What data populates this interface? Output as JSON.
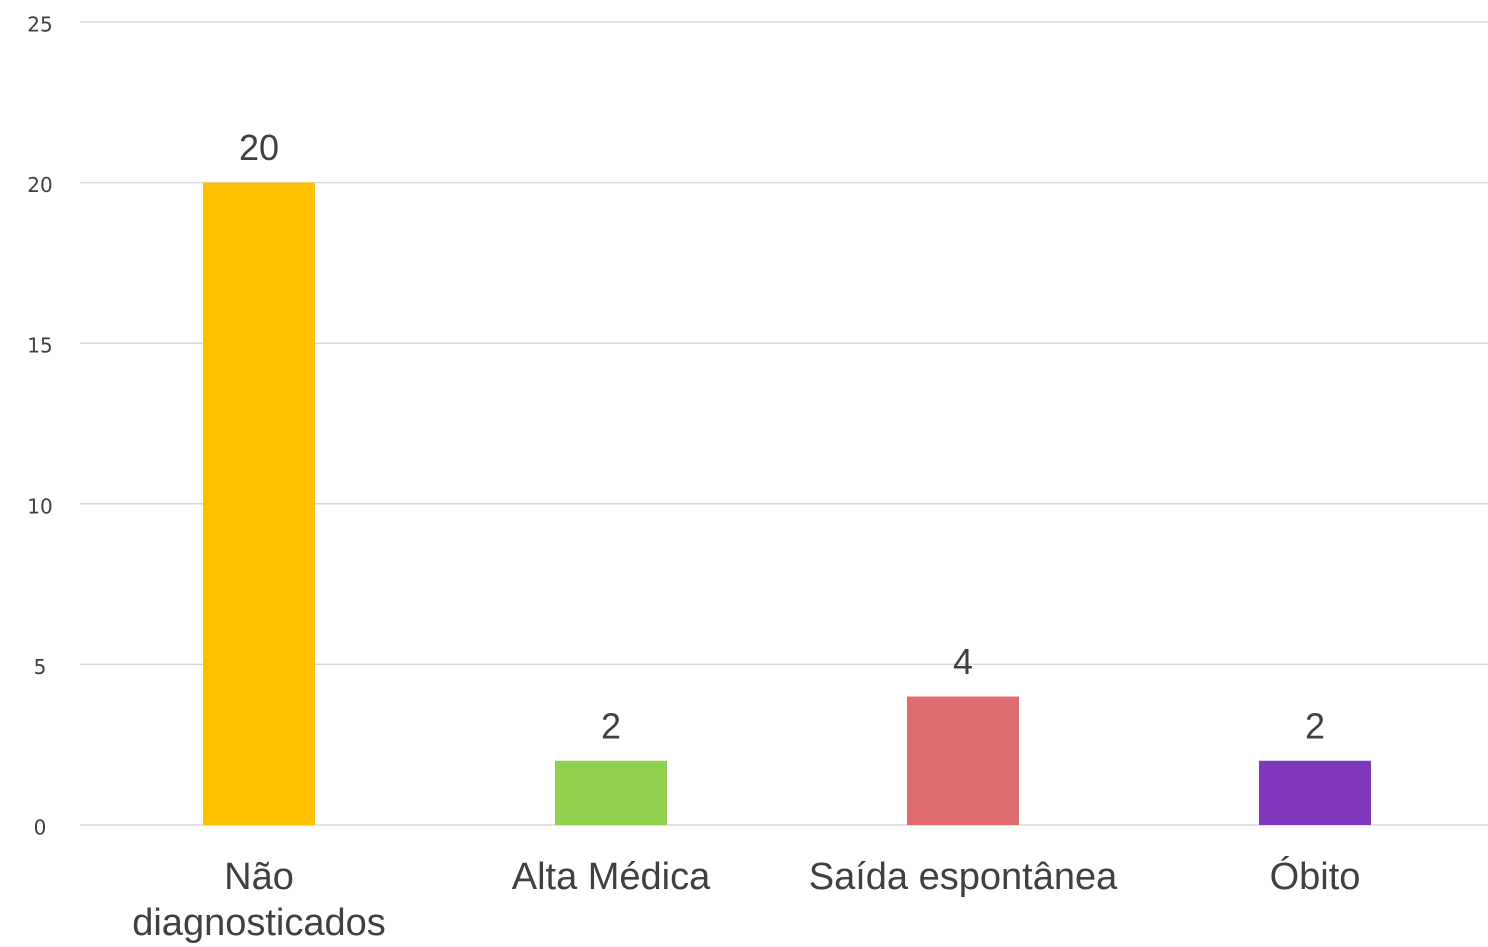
{
  "chart_data": {
    "type": "bar",
    "categories": [
      "Não diagnosticados",
      "Alta Médica",
      "Saída espontânea",
      "Óbito"
    ],
    "values": [
      20,
      2,
      4,
      2
    ],
    "colors": [
      "#FFC000",
      "#92D050",
      "#E06B6E",
      "#7F38BB"
    ],
    "ylim": [
      0,
      25
    ],
    "yticks": [
      0,
      5,
      10,
      15,
      20,
      25
    ],
    "grid": true
  }
}
